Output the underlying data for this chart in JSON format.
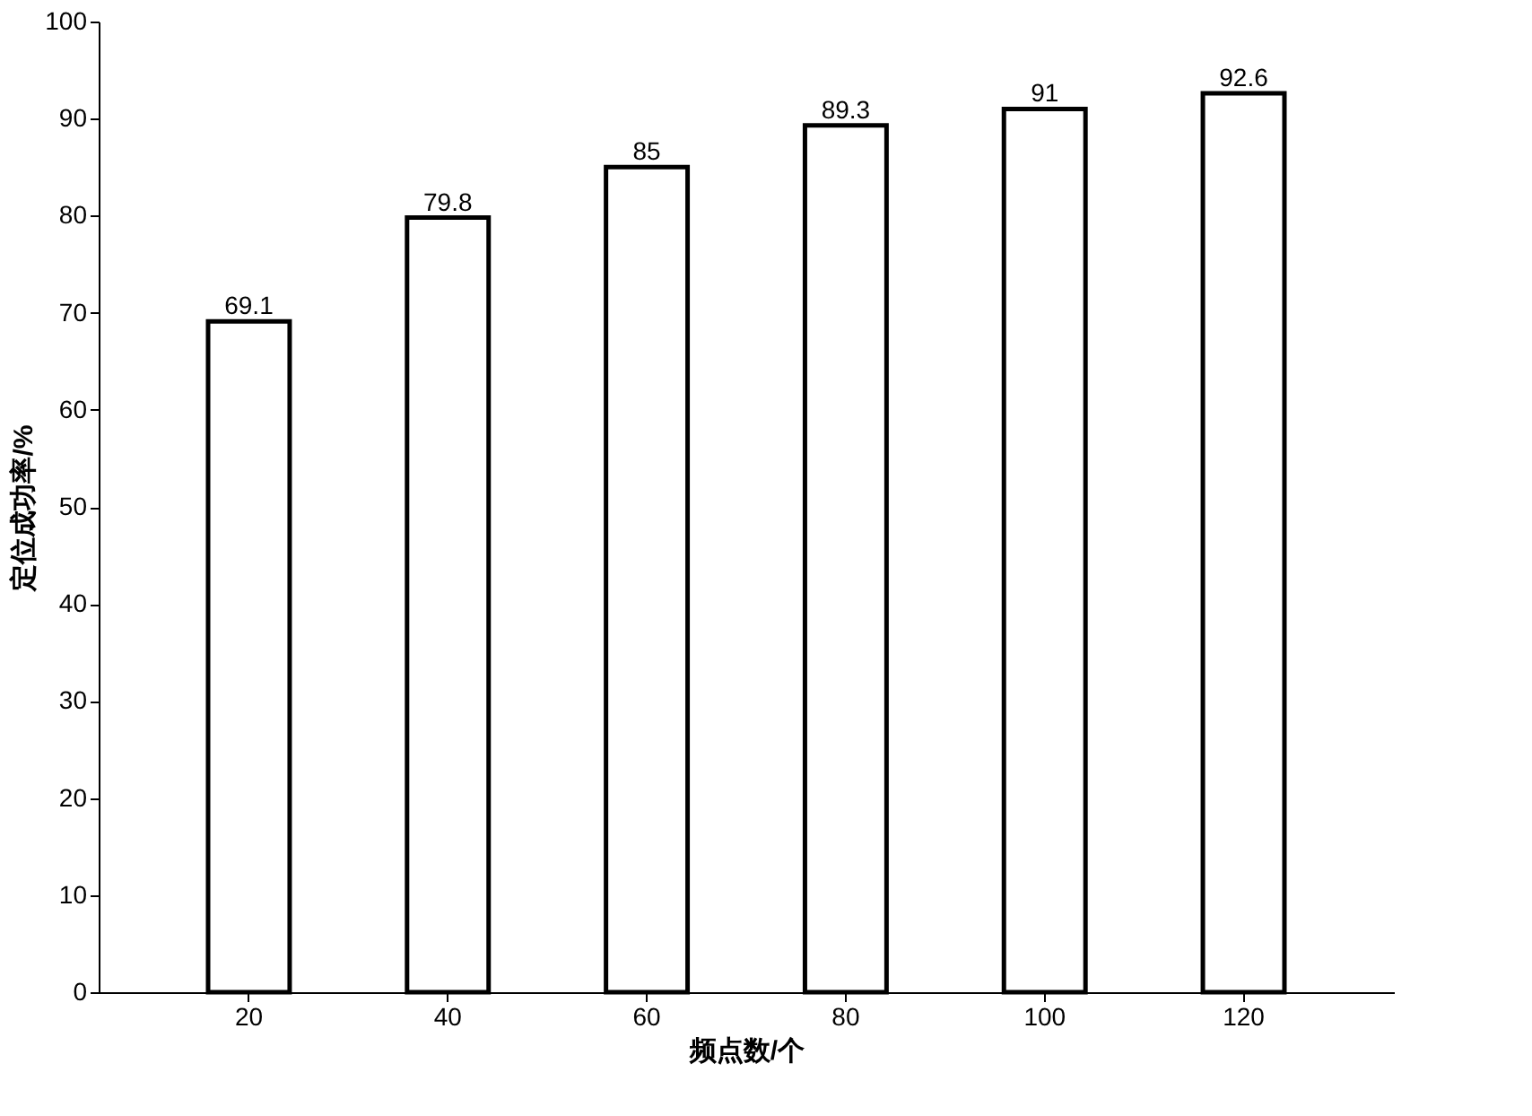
{
  "chart_data": {
    "type": "bar",
    "xlabel": "频点数/个",
    "ylabel": "定位成功率/%",
    "categories": [
      "20",
      "40",
      "60",
      "80",
      "100",
      "120"
    ],
    "values": [
      69.1,
      79.8,
      85,
      89.3,
      91,
      92.6
    ],
    "color": "#ffffff",
    "ylim": [
      0,
      100
    ],
    "yticks": [
      0,
      10,
      20,
      30,
      40,
      50,
      60,
      70,
      80,
      90,
      100
    ],
    "data_labels": true,
    "grid": false
  }
}
